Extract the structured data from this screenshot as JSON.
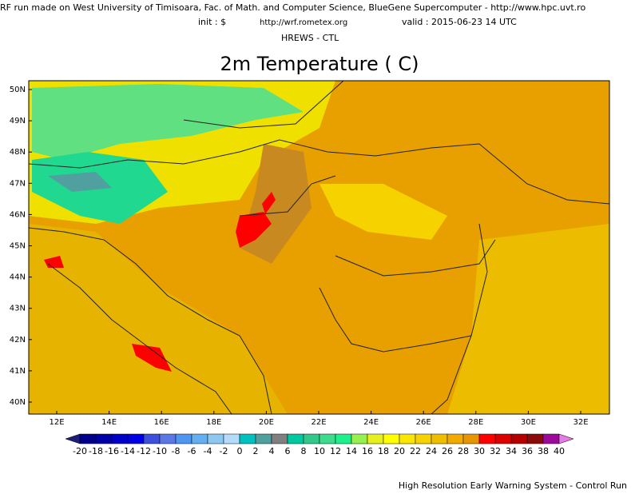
{
  "header": {
    "line1": "RF run made on West University of Timisoara, Fac. of Math. and Computer Science, BlueGene Supercomputer - http://www.hpc.uvt.ro",
    "init": "init : $",
    "url": "http://wrf.rometex.org",
    "valid": "valid : 2015-06-23  14 UTC",
    "run": "HREWS - CTL"
  },
  "title": "2m Temperature (  C)",
  "map": {
    "lat_labels": [
      "50N",
      "49N",
      "48N",
      "47N",
      "46N",
      "45N",
      "44N",
      "43N",
      "42N",
      "41N",
      "40N"
    ],
    "lon_labels": [
      "12E",
      "14E",
      "16E",
      "18E",
      "20E",
      "22E",
      "24E",
      "26E",
      "28E",
      "30E",
      "32E"
    ]
  },
  "colorbar": {
    "labels": [
      -20,
      -18,
      -16,
      -14,
      -12,
      -10,
      -8,
      -6,
      -4,
      -2,
      0,
      2,
      4,
      6,
      8,
      10,
      12,
      14,
      16,
      18,
      20,
      22,
      24,
      26,
      28,
      30,
      32,
      34,
      36,
      38,
      40
    ],
    "colors": [
      "#00008b",
      "#0000a5",
      "#0000c8",
      "#0000e6",
      "#3c50dc",
      "#5a78e6",
      "#5096f0",
      "#64afef",
      "#8cc8f0",
      "#b4dcfa",
      "#00c0c0",
      "#50a0a0",
      "#808080",
      "#00c8a0",
      "#32c88c",
      "#3cdc8c",
      "#1ef08c",
      "#96f050",
      "#e6f01e",
      "#ffff00",
      "#fae600",
      "#f5d200",
      "#f0be00",
      "#f0aa00",
      "#e69600",
      "#ff0000",
      "#dc0000",
      "#b40000",
      "#8b0a0a",
      "#9b0a9b"
    ],
    "under_color": "#1e1e78",
    "over_color": "#e67ae6"
  },
  "footer": "High Resolution Early Warning System - Control Run"
}
